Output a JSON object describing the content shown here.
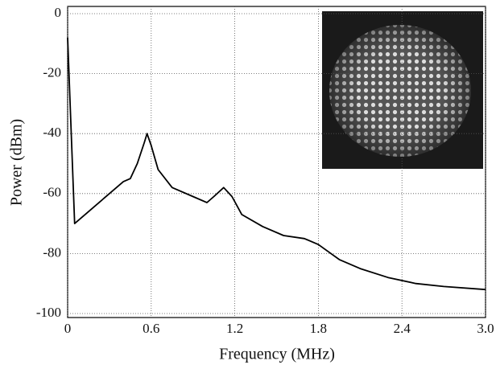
{
  "chart_data": {
    "type": "line",
    "xlabel": "Frequency (MHz)",
    "ylabel": "Power (dBm)",
    "x": [
      0,
      0.05,
      0.15,
      0.3,
      0.4,
      0.45,
      0.5,
      0.55,
      0.57,
      0.6,
      0.65,
      0.75,
      0.9,
      1.0,
      1.05,
      1.12,
      1.18,
      1.25,
      1.4,
      1.55,
      1.7,
      1.8,
      1.95,
      2.1,
      2.3,
      2.5,
      2.7,
      3.0
    ],
    "series": [
      {
        "color": "#000000",
        "values": [
          -8,
          -70,
          -66,
          -60,
          -56,
          -55,
          -50,
          -43,
          -40,
          -44,
          -52,
          -58,
          -61,
          -63,
          -61,
          -58,
          -61,
          -67,
          -71,
          -74,
          -75,
          -77,
          -82,
          -85,
          -88,
          -90,
          -91,
          -92
        ]
      }
    ],
    "xlim": [
      0,
      3.0
    ],
    "ylim": [
      -100,
      0
    ],
    "xticks": [
      0,
      0.6,
      1.2,
      1.8,
      2.4,
      {
        "value": 3,
        "label": "3.0"
      }
    ],
    "yticks": [
      0,
      -20,
      -40,
      -60,
      -80,
      -100
    ],
    "grid": true
  }
}
